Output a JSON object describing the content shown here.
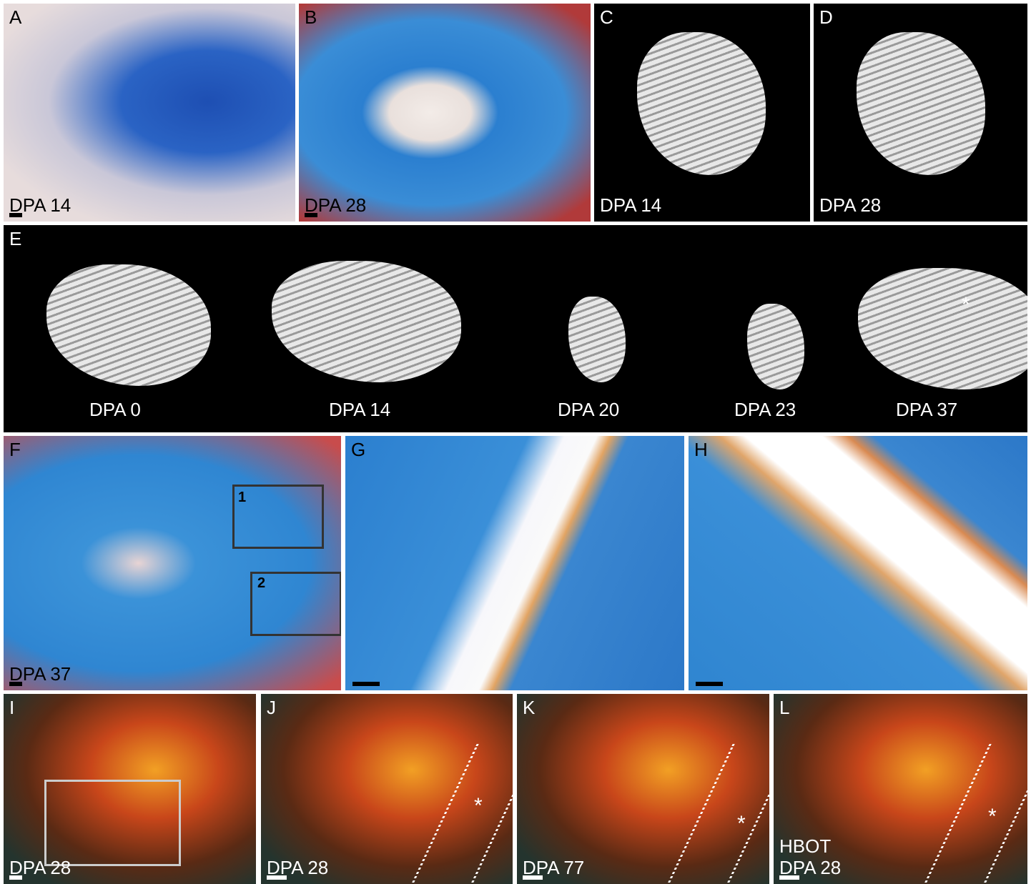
{
  "panels": [
    {
      "letter": "A",
      "captions": [
        "DPA 14"
      ]
    },
    {
      "letter": "B",
      "captions": [
        "DPA 28"
      ]
    },
    {
      "letter": "C",
      "captions": [
        "DPA 14"
      ]
    },
    {
      "letter": "D",
      "captions": [
        "DPA 28"
      ]
    },
    {
      "letter": "E",
      "captions": [
        "DPA 0",
        "DPA 14",
        "DPA 20",
        "DPA 23",
        "DPA 37"
      ],
      "markers": [
        "*"
      ]
    },
    {
      "letter": "F",
      "captions": [
        "DPA 37"
      ],
      "markers": [
        "1",
        "2"
      ]
    },
    {
      "letter": "G",
      "captions": []
    },
    {
      "letter": "H",
      "captions": []
    },
    {
      "letter": "I",
      "captions": [
        "DPA 28"
      ]
    },
    {
      "letter": "J",
      "captions": [
        "DPA 28"
      ],
      "markers": [
        "*"
      ]
    },
    {
      "letter": "K",
      "captions": [
        "DPA 77"
      ],
      "markers": [
        "*"
      ]
    },
    {
      "letter": "L",
      "captions": [
        "HBOT",
        "DPA 28"
      ],
      "markers": [
        "*"
      ]
    }
  ]
}
